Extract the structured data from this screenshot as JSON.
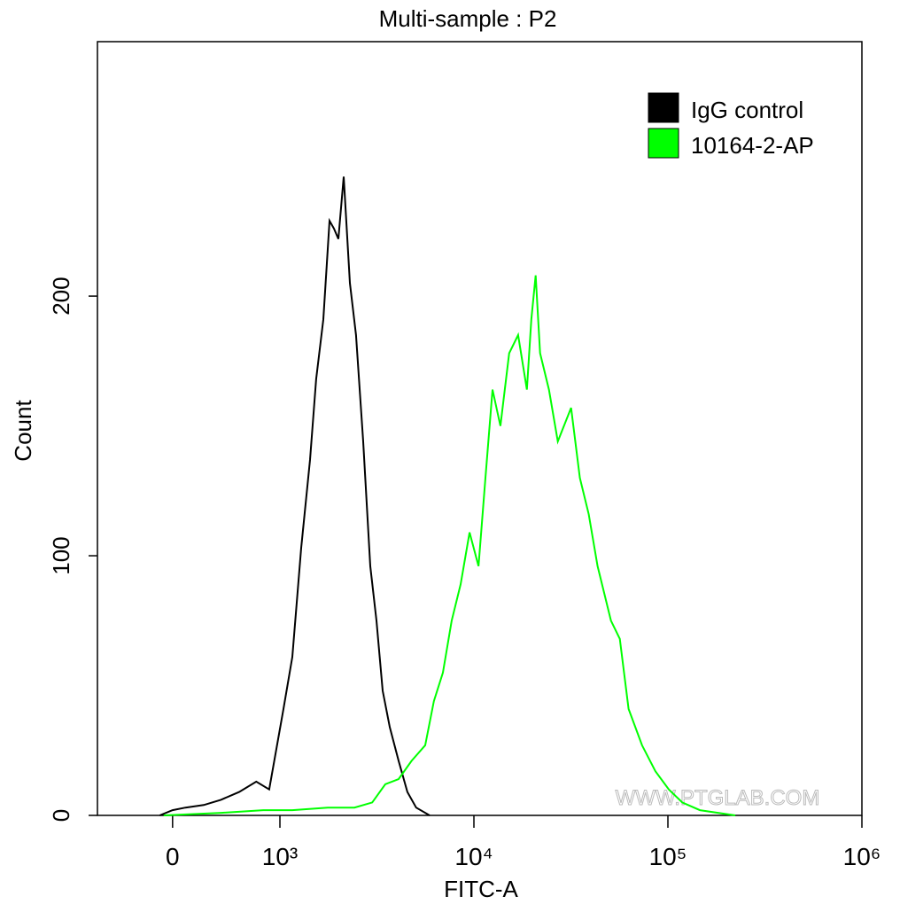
{
  "chart_data": {
    "type": "histogram-overlay",
    "title": "Multi-sample : P2",
    "x_label": "FITC-A",
    "y_label": "Count",
    "watermark": "WWW.PTGLAB.COM",
    "x_scale": "biexponential",
    "xlim": [
      -700,
      1000000
    ],
    "xticks": [
      0,
      {
        "value": 1000,
        "label": "10³"
      },
      {
        "value": 10000,
        "label": "10⁴"
      },
      {
        "value": 100000,
        "label": "10⁵"
      },
      {
        "value": 1000000,
        "label": "10⁶"
      }
    ],
    "ylim": [
      0,
      298
    ],
    "yticks": [
      0,
      100,
      200
    ],
    "legend": "top-right",
    "series": [
      {
        "name": "IgG control",
        "color": "#000000",
        "x": [
          -120,
          0,
          120,
          290,
          450,
          620,
          780,
          900,
          1043,
          1158,
          1287,
          1430,
          1538,
          1674,
          1801,
          1899,
          2002,
          2131,
          2295,
          2467,
          2687,
          2922,
          3146,
          3385,
          3682,
          4090,
          4540,
          5040,
          5910
        ],
        "values": [
          0,
          2,
          3,
          4,
          6,
          9,
          13,
          10,
          41,
          61,
          103,
          137,
          168,
          191,
          229,
          226,
          222,
          246,
          205,
          185,
          144,
          96,
          75,
          48,
          34,
          21,
          9,
          3,
          0
        ]
      },
      {
        "name": "10164-2-AP",
        "color": "#00ff00",
        "x": [
          -83,
          455,
          845,
          1158,
          1764,
          2420,
          2990,
          3495,
          4090,
          4770,
          5610,
          6220,
          6920,
          7680,
          8540,
          9500,
          10560,
          11470,
          12470,
          13690,
          15200,
          16890,
          18750,
          19760,
          20820,
          21940,
          24370,
          27060,
          31680,
          35180,
          39070,
          43380,
          50870,
          56480,
          62720,
          73540,
          86230,
          101100,
          118600,
          146200,
          222600
        ],
        "values": [
          0,
          1,
          2,
          2,
          3,
          3,
          5,
          12,
          14,
          21,
          27,
          44,
          55,
          75,
          89,
          109,
          96,
          130,
          164,
          150,
          178,
          185,
          164,
          191,
          208,
          178,
          164,
          144,
          157,
          130,
          116,
          96,
          75,
          68,
          41,
          27,
          17,
          10,
          5,
          2,
          0
        ]
      }
    ]
  }
}
